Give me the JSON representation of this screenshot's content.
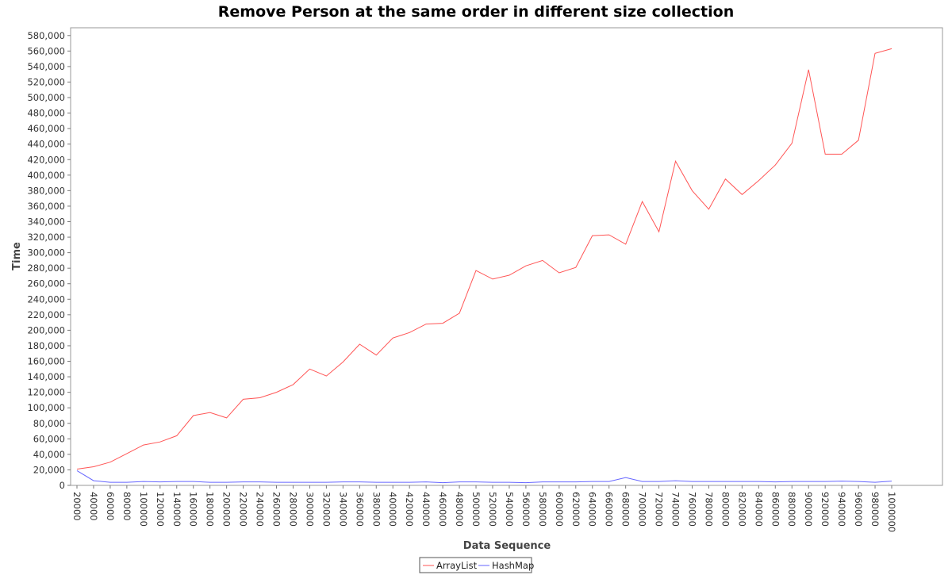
{
  "chart_data": {
    "type": "line",
    "title": "Remove Person at the same order in different size collection",
    "xlabel": "Data Sequence",
    "ylabel": "Time",
    "x": [
      20000,
      40000,
      60000,
      80000,
      100000,
      120000,
      140000,
      160000,
      180000,
      200000,
      220000,
      240000,
      260000,
      280000,
      300000,
      320000,
      340000,
      360000,
      380000,
      400000,
      420000,
      440000,
      460000,
      480000,
      500000,
      520000,
      540000,
      560000,
      580000,
      600000,
      620000,
      640000,
      660000,
      680000,
      700000,
      720000,
      740000,
      760000,
      780000,
      800000,
      820000,
      840000,
      860000,
      880000,
      900000,
      920000,
      940000,
      960000,
      980000,
      1000000
    ],
    "x_tick_labels": [
      "20000",
      "40000",
      "60000",
      "80000",
      "100000",
      "120000",
      "140000",
      "160000",
      "180000",
      "200000",
      "220000",
      "240000",
      "260000",
      "280000",
      "300000",
      "320000",
      "340000",
      "360000",
      "380000",
      "400000",
      "420000",
      "440000",
      "460000",
      "480000",
      "500000",
      "520000",
      "540000",
      "560000",
      "580000",
      "600000",
      "620000",
      "640000",
      "660000",
      "680000",
      "700000",
      "720000",
      "740000",
      "760000",
      "780000",
      "800000",
      "820000",
      "840000",
      "860000",
      "880000",
      "900000",
      "920000",
      "940000",
      "960000",
      "980000",
      "1000000"
    ],
    "y_tick_labels": [
      "0",
      "20,000",
      "40,000",
      "60,000",
      "80,000",
      "100,000",
      "120,000",
      "140,000",
      "160,000",
      "180,000",
      "200,000",
      "220,000",
      "240,000",
      "260,000",
      "280,000",
      "300,000",
      "320,000",
      "340,000",
      "360,000",
      "380,000",
      "400,000",
      "420,000",
      "440,000",
      "460,000",
      "480,000",
      "500,000",
      "520,000",
      "540,000",
      "560,000",
      "580,000"
    ],
    "ylim": [
      0,
      590000
    ],
    "grid": false,
    "legend_position": "bottom",
    "series": [
      {
        "name": "ArrayList",
        "color": "#ff5555",
        "values": [
          21000,
          24000,
          30000,
          41000,
          52000,
          56000,
          64000,
          90000,
          94000,
          87000,
          111000,
          113000,
          120000,
          130000,
          150000,
          141000,
          159000,
          182000,
          168000,
          190000,
          197000,
          208000,
          209000,
          222000,
          277000,
          266000,
          271000,
          283000,
          290000,
          274000,
          281000,
          322000,
          323000,
          311000,
          366000,
          327000,
          418000,
          380000,
          356000,
          395000,
          375000,
          393000,
          413000,
          441000,
          536000,
          427000,
          427000,
          445000,
          557000,
          563000
        ]
      },
      {
        "name": "HashMap",
        "color": "#6666ff",
        "values": [
          19000,
          6000,
          4000,
          4000,
          5000,
          4500,
          5000,
          5000,
          4000,
          4000,
          4500,
          4500,
          4000,
          4000,
          4000,
          4000,
          4500,
          4500,
          4000,
          4000,
          4000,
          4500,
          3500,
          4500,
          4500,
          4000,
          4000,
          3500,
          4500,
          4500,
          4500,
          5000,
          5000,
          10000,
          5000,
          5000,
          6000,
          5000,
          5000,
          5000,
          5000,
          5000,
          4500,
          5000,
          5000,
          5000,
          5500,
          5000,
          4000,
          5500
        ]
      }
    ]
  }
}
